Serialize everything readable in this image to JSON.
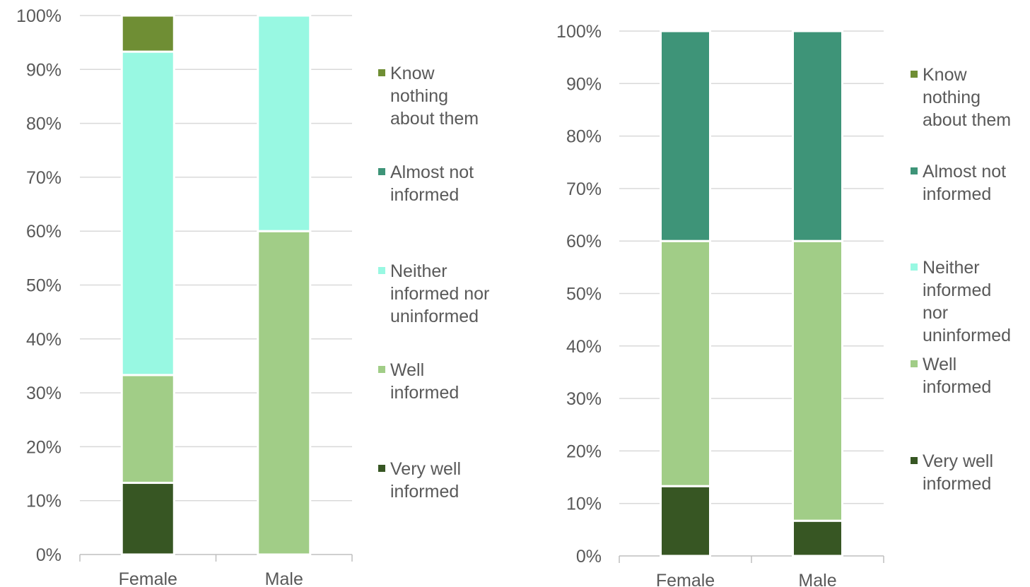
{
  "chart_data": [
    {
      "type": "bar",
      "stacked": true,
      "categories": [
        "Female",
        "Male"
      ],
      "series": [
        {
          "name": "Very well informed",
          "color": "#375623",
          "values": [
            13.3,
            0
          ]
        },
        {
          "name": "Well informed",
          "color": "#a1cd87",
          "values": [
            20,
            60
          ]
        },
        {
          "name": "Neither informed nor uninformed",
          "color": "#98f8e2",
          "values": [
            60,
            40
          ]
        },
        {
          "name": "Almost not informed",
          "color": "#3e9478",
          "values": [
            0,
            0
          ]
        },
        {
          "name": "Know nothing about them",
          "color": "#6f8e34",
          "values": [
            6.7,
            0
          ]
        }
      ],
      "ylim": [
        0,
        100
      ],
      "yticks": [
        "0%",
        "10%",
        "20%",
        "30%",
        "40%",
        "50%",
        "60%",
        "70%",
        "80%",
        "90%",
        "100%"
      ],
      "grid": true,
      "legend_position": "right",
      "legend": [
        {
          "series": "Know nothing about them",
          "lines": [
            "Know",
            "nothing",
            "about them"
          ]
        },
        {
          "series": "Almost not informed",
          "lines": [
            "Almost not",
            "informed"
          ]
        },
        {
          "series": "Neither informed nor uninformed",
          "lines": [
            "Neither",
            "informed nor",
            "uninformed"
          ]
        },
        {
          "series": "Well informed",
          "lines": [
            "Well",
            "informed"
          ]
        },
        {
          "series": "Very well informed",
          "lines": [
            "Very well",
            "informed"
          ]
        }
      ]
    },
    {
      "type": "bar",
      "stacked": true,
      "categories": [
        "Female",
        "Male"
      ],
      "series": [
        {
          "name": "Very well informed",
          "color": "#375623",
          "values": [
            13.3,
            6.7
          ]
        },
        {
          "name": "Well informed",
          "color": "#a1cd87",
          "values": [
            46.7,
            53.3
          ]
        },
        {
          "name": "Neither informed nor uninformed",
          "color": "#98f8e2",
          "values": [
            0,
            0
          ]
        },
        {
          "name": "Almost not informed",
          "color": "#3e9478",
          "values": [
            40,
            40
          ]
        },
        {
          "name": "Know nothing about them",
          "color": "#6f8e34",
          "values": [
            0,
            0
          ]
        }
      ],
      "ylim": [
        0,
        100
      ],
      "yticks": [
        "0%",
        "10%",
        "20%",
        "30%",
        "40%",
        "50%",
        "60%",
        "70%",
        "80%",
        "90%",
        "100%"
      ],
      "grid": true,
      "legend_position": "right",
      "legend": [
        {
          "series": "Know nothing about them",
          "lines": [
            "Know",
            "nothing",
            "about them"
          ]
        },
        {
          "series": "Almost not informed",
          "lines": [
            "Almost not",
            "informed"
          ]
        },
        {
          "series": "Neither informed nor uninformed",
          "lines": [
            "Neither",
            "informed",
            "nor",
            "uninformed"
          ]
        },
        {
          "series": "Well informed",
          "lines": [
            "Well",
            "informed"
          ]
        },
        {
          "series": "Very well informed",
          "lines": [
            "Very well",
            "informed"
          ]
        }
      ]
    }
  ]
}
